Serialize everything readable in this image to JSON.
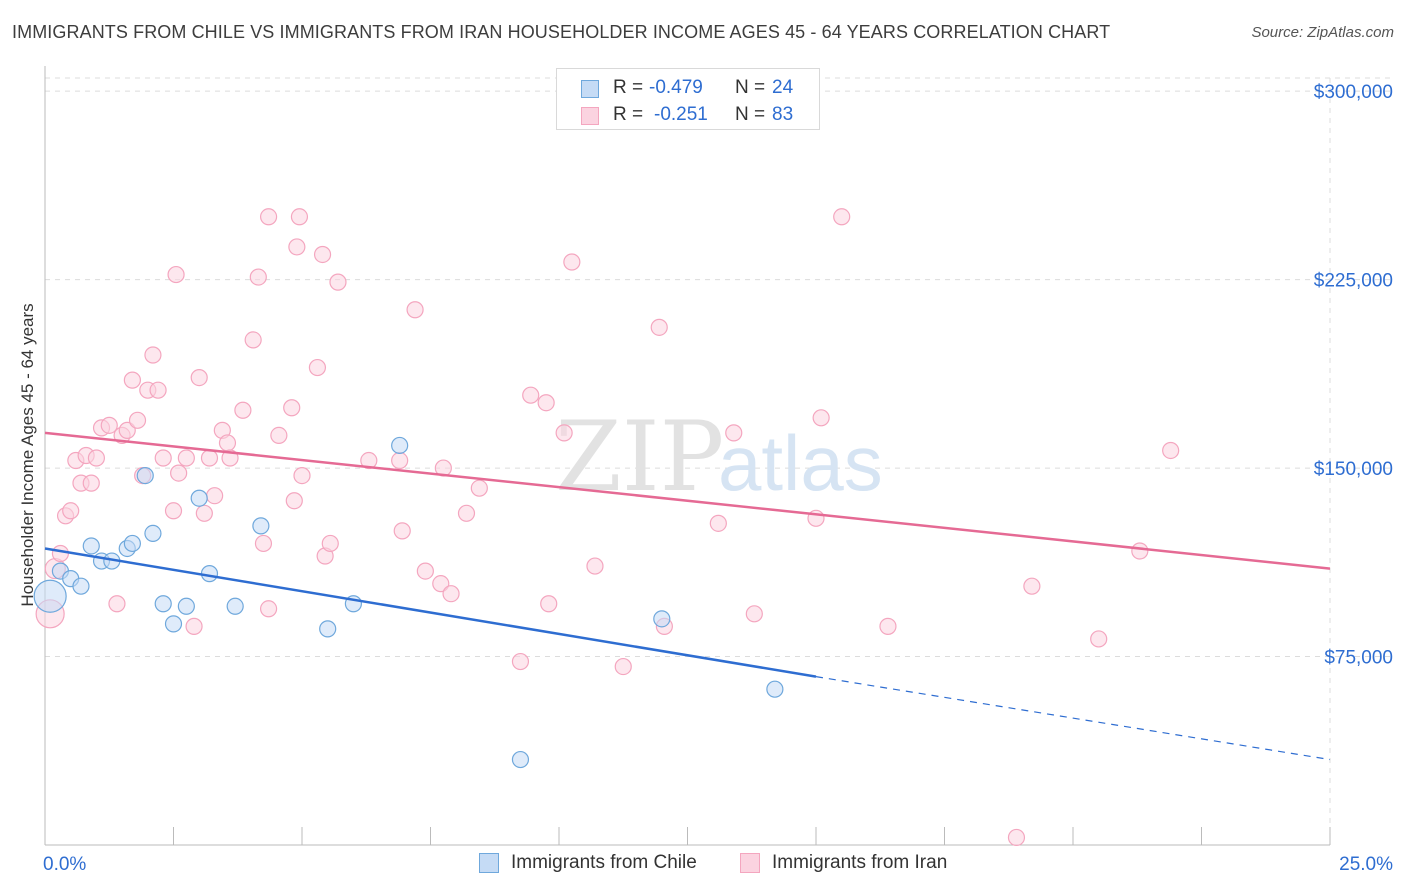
{
  "header": {
    "title": "IMMIGRANTS FROM CHILE VS IMMIGRANTS FROM IRAN HOUSEHOLDER INCOME AGES 45 - 64 YEARS CORRELATION CHART",
    "source": "Source: ZipAtlas.com"
  },
  "watermark": {
    "zip": "ZIP",
    "atlas": "atlas"
  },
  "stats_legend": {
    "rows": [
      {
        "r_label": "R =",
        "r_value": "-0.479",
        "n_label": "N =",
        "n_value": "24",
        "color": "#6fa8dc"
      },
      {
        "r_label": "R =",
        "r_value": "-0.251",
        "n_label": "N =",
        "n_value": "83",
        "color": "#f4a6bf"
      }
    ]
  },
  "chart_data": {
    "type": "scatter",
    "title": "IMMIGRANTS FROM CHILE VS IMMIGRANTS FROM IRAN HOUSEHOLDER INCOME AGES 45 - 64 YEARS CORRELATION CHART",
    "xlabel": "",
    "ylabel": "Householder Income Ages 45 - 64 years",
    "xlim": [
      0,
      25
    ],
    "ylim": [
      0,
      310000
    ],
    "x_tick_labels": [
      "0.0%",
      "25.0%"
    ],
    "y_ticks": [
      75000,
      150000,
      225000,
      300000
    ],
    "y_tick_labels": [
      "$75,000",
      "$150,000",
      "$225,000",
      "$300,000"
    ],
    "grid": true,
    "legend_position": "bottom",
    "series": [
      {
        "name": "Immigrants from Chile",
        "color": "#6fa8dc",
        "line_color": "#2e6dd1",
        "trend": {
          "x_start": 0.0,
          "y_start": 118000,
          "x_end_solid": 15.0,
          "y_end_solid": 67000,
          "x_end": 25.0,
          "y_end": 34000
        },
        "points": [
          [
            0.1,
            99000,
            32
          ],
          [
            0.3,
            109000,
            16
          ],
          [
            0.5,
            106000,
            16
          ],
          [
            0.7,
            103000,
            16
          ],
          [
            0.9,
            119000,
            16
          ],
          [
            1.1,
            113000,
            16
          ],
          [
            1.3,
            113000,
            16
          ],
          [
            1.6,
            118000,
            16
          ],
          [
            1.7,
            120000,
            16
          ],
          [
            1.95,
            147000,
            16
          ],
          [
            2.1,
            124000,
            16
          ],
          [
            2.3,
            96000,
            16
          ],
          [
            2.5,
            88000,
            16
          ],
          [
            2.75,
            95000,
            16
          ],
          [
            3.0,
            138000,
            16
          ],
          [
            3.2,
            108000,
            16
          ],
          [
            3.7,
            95000,
            16
          ],
          [
            4.2,
            127000,
            16
          ],
          [
            5.5,
            86000,
            16
          ],
          [
            6.0,
            96000,
            16
          ],
          [
            6.9,
            159000,
            16
          ],
          [
            9.25,
            34000,
            16
          ],
          [
            12.0,
            90000,
            16
          ],
          [
            14.2,
            62000,
            16
          ]
        ]
      },
      {
        "name": "Immigrants from Iran",
        "color": "#f4a6bf",
        "line_color": "#e56a94",
        "trend": {
          "x_start": 0.0,
          "y_start": 164000,
          "x_end": 25.0,
          "y_end": 110000
        },
        "points": [
          [
            0.1,
            92000,
            28
          ],
          [
            0.2,
            110000,
            20
          ],
          [
            0.3,
            116000,
            16
          ],
          [
            0.4,
            131000,
            16
          ],
          [
            0.5,
            133000,
            16
          ],
          [
            0.6,
            153000,
            16
          ],
          [
            0.7,
            144000,
            16
          ],
          [
            0.8,
            155000,
            16
          ],
          [
            0.9,
            144000,
            16
          ],
          [
            1.0,
            154000,
            16
          ],
          [
            1.1,
            166000,
            16
          ],
          [
            1.25,
            167000,
            16
          ],
          [
            1.4,
            96000,
            16
          ],
          [
            1.5,
            163000,
            16
          ],
          [
            1.6,
            165000,
            16
          ],
          [
            1.7,
            185000,
            16
          ],
          [
            1.8,
            169000,
            16
          ],
          [
            1.9,
            147000,
            16
          ],
          [
            2.0,
            181000,
            16
          ],
          [
            2.1,
            195000,
            16
          ],
          [
            2.2,
            181000,
            16
          ],
          [
            2.3,
            154000,
            16
          ],
          [
            2.5,
            133000,
            16
          ],
          [
            2.55,
            227000,
            16
          ],
          [
            2.6,
            148000,
            16
          ],
          [
            2.75,
            154000,
            16
          ],
          [
            2.9,
            87000,
            16
          ],
          [
            3.0,
            186000,
            16
          ],
          [
            3.1,
            132000,
            16
          ],
          [
            3.2,
            154000,
            16
          ],
          [
            3.3,
            139000,
            16
          ],
          [
            3.45,
            165000,
            16
          ],
          [
            3.55,
            160000,
            16
          ],
          [
            3.6,
            154000,
            16
          ],
          [
            3.85,
            173000,
            16
          ],
          [
            4.05,
            201000,
            16
          ],
          [
            4.15,
            226000,
            16
          ],
          [
            4.25,
            120000,
            16
          ],
          [
            4.35,
            94000,
            16
          ],
          [
            4.35,
            250000,
            16
          ],
          [
            4.55,
            163000,
            16
          ],
          [
            4.8,
            174000,
            16
          ],
          [
            4.85,
            137000,
            16
          ],
          [
            4.9,
            238000,
            16
          ],
          [
            4.95,
            250000,
            16
          ],
          [
            5.0,
            147000,
            16
          ],
          [
            5.3,
            190000,
            16
          ],
          [
            5.4,
            235000,
            16
          ],
          [
            5.45,
            115000,
            16
          ],
          [
            5.55,
            120000,
            16
          ],
          [
            5.7,
            224000,
            16
          ],
          [
            6.3,
            153000,
            16
          ],
          [
            6.9,
            153000,
            16
          ],
          [
            6.95,
            125000,
            16
          ],
          [
            7.2,
            213000,
            16
          ],
          [
            7.4,
            109000,
            16
          ],
          [
            7.7,
            104000,
            16
          ],
          [
            7.75,
            150000,
            16
          ],
          [
            7.9,
            100000,
            16
          ],
          [
            8.2,
            132000,
            16
          ],
          [
            8.45,
            142000,
            16
          ],
          [
            9.25,
            73000,
            16
          ],
          [
            9.45,
            179000,
            16
          ],
          [
            9.75,
            176000,
            16
          ],
          [
            9.8,
            96000,
            16
          ],
          [
            10.1,
            164000,
            16
          ],
          [
            10.25,
            232000,
            16
          ],
          [
            10.7,
            111000,
            16
          ],
          [
            11.25,
            71000,
            16
          ],
          [
            11.95,
            206000,
            16
          ],
          [
            12.05,
            87000,
            16
          ],
          [
            13.1,
            128000,
            16
          ],
          [
            13.4,
            164000,
            16
          ],
          [
            13.8,
            92000,
            16
          ],
          [
            15.0,
            130000,
            16
          ],
          [
            15.1,
            170000,
            16
          ],
          [
            15.5,
            250000,
            16
          ],
          [
            16.4,
            87000,
            16
          ],
          [
            18.9,
            3000,
            16
          ],
          [
            19.2,
            103000,
            16
          ],
          [
            20.5,
            82000,
            16
          ],
          [
            21.3,
            117000,
            16
          ],
          [
            21.9,
            157000,
            16
          ]
        ]
      }
    ]
  }
}
